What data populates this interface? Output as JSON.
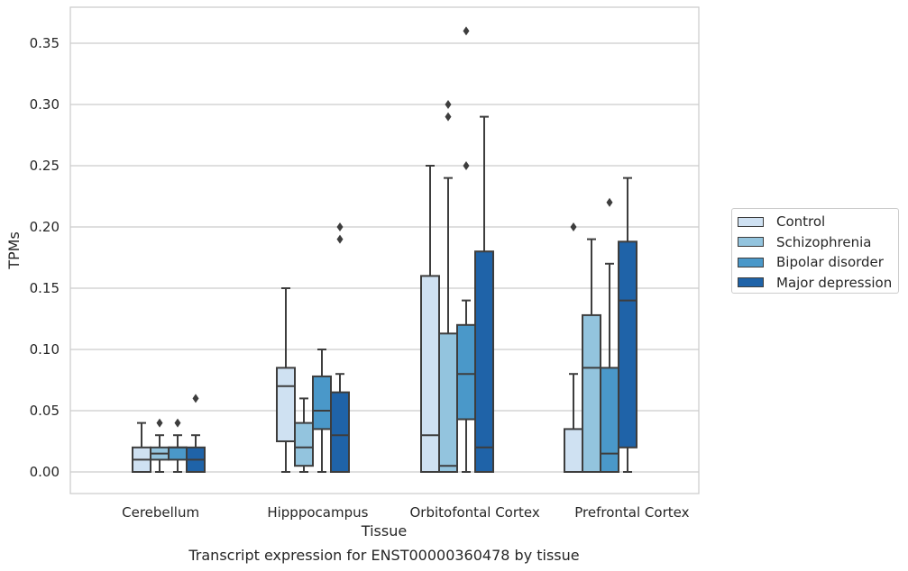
{
  "chart_data": {
    "type": "box",
    "title": "Transcript expression for ENST00000360478 by tissue",
    "xlabel": "Tissue",
    "ylabel": "TPMs",
    "ylim": [
      -0.018,
      0.379
    ],
    "yticks": [
      0.0,
      0.05,
      0.1,
      0.15,
      0.2,
      0.25,
      0.3,
      0.35
    ],
    "ytick_labels": [
      "0.00",
      "0.05",
      "0.10",
      "0.15",
      "0.20",
      "0.25",
      "0.30",
      "0.35"
    ],
    "grid": true,
    "legend_position": "right",
    "categories": [
      "Cerebellum",
      "Hipppocampus",
      "Orbitofontal Cortex",
      "Prefrontal Cortex"
    ],
    "series": [
      {
        "name": "Control",
        "color": "#cfe1f2",
        "boxes": [
          {
            "whislo": 0.0,
            "q1": 0.0,
            "med": 0.01,
            "q3": 0.02,
            "whishi": 0.04,
            "fliers": []
          },
          {
            "whislo": 0.0,
            "q1": 0.025,
            "med": 0.07,
            "q3": 0.085,
            "whishi": 0.15,
            "fliers": []
          },
          {
            "whislo": 0.0,
            "q1": 0.0,
            "med": 0.03,
            "q3": 0.16,
            "whishi": 0.25,
            "fliers": []
          },
          {
            "whislo": 0.0,
            "q1": 0.0,
            "med": 0.0,
            "q3": 0.035,
            "whishi": 0.08,
            "fliers": [
              0.2
            ]
          }
        ]
      },
      {
        "name": "Schizophrenia",
        "color": "#93c4de",
        "boxes": [
          {
            "whislo": 0.0,
            "q1": 0.01,
            "med": 0.015,
            "q3": 0.02,
            "whishi": 0.03,
            "fliers": [
              0.04
            ]
          },
          {
            "whislo": 0.0,
            "q1": 0.005,
            "med": 0.02,
            "q3": 0.04,
            "whishi": 0.06,
            "fliers": []
          },
          {
            "whislo": 0.0,
            "q1": 0.0,
            "med": 0.005,
            "q3": 0.113,
            "whishi": 0.24,
            "fliers": [
              0.29,
              0.3
            ]
          },
          {
            "whislo": 0.0,
            "q1": 0.0,
            "med": 0.085,
            "q3": 0.128,
            "whishi": 0.19,
            "fliers": []
          }
        ]
      },
      {
        "name": "Bipolar disorder",
        "color": "#4a98c9",
        "boxes": [
          {
            "whislo": 0.0,
            "q1": 0.01,
            "med": 0.02,
            "q3": 0.02,
            "whishi": 0.03,
            "fliers": [
              0.04
            ]
          },
          {
            "whislo": 0.0,
            "q1": 0.035,
            "med": 0.05,
            "q3": 0.078,
            "whishi": 0.1,
            "fliers": []
          },
          {
            "whislo": 0.0,
            "q1": 0.043,
            "med": 0.08,
            "q3": 0.12,
            "whishi": 0.14,
            "fliers": [
              0.25,
              0.36
            ]
          },
          {
            "whislo": 0.0,
            "q1": 0.0,
            "med": 0.015,
            "q3": 0.085,
            "whishi": 0.17,
            "fliers": [
              0.22
            ]
          }
        ]
      },
      {
        "name": "Major depression",
        "color": "#1f63a8",
        "boxes": [
          {
            "whislo": 0.0,
            "q1": 0.0,
            "med": 0.01,
            "q3": 0.02,
            "whishi": 0.03,
            "fliers": [
              0.06
            ]
          },
          {
            "whislo": 0.0,
            "q1": 0.0,
            "med": 0.03,
            "q3": 0.065,
            "whishi": 0.08,
            "fliers": [
              0.19,
              0.2
            ]
          },
          {
            "whislo": 0.0,
            "q1": 0.0,
            "med": 0.02,
            "q3": 0.18,
            "whishi": 0.29,
            "fliers": []
          },
          {
            "whislo": 0.0,
            "q1": 0.02,
            "med": 0.14,
            "q3": 0.188,
            "whishi": 0.24,
            "fliers": []
          }
        ]
      }
    ]
  }
}
